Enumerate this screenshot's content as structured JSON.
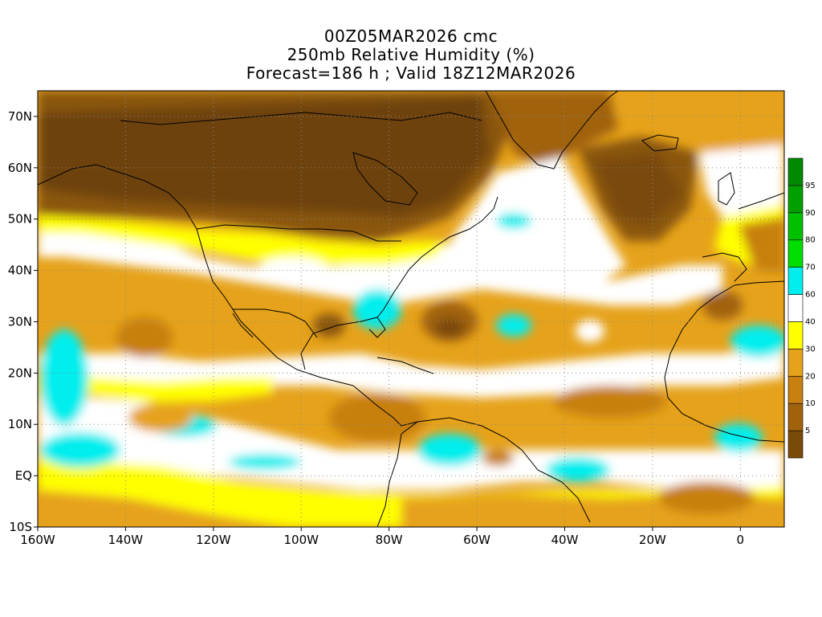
{
  "header": {
    "line1": "00Z05MAR2026 cmc",
    "line2": "250mb Relative Humidity (%)",
    "line3": "Forecast=186 h ; Valid 18Z12MAR2026"
  },
  "map": {
    "lon_range": [
      -160,
      10
    ],
    "lat_range": [
      -10,
      75
    ],
    "lat_ticks": [
      {
        "value": 70,
        "label": "70N"
      },
      {
        "value": 60,
        "label": "60N"
      },
      {
        "value": 50,
        "label": "50N"
      },
      {
        "value": 40,
        "label": "40N"
      },
      {
        "value": 30,
        "label": "30N"
      },
      {
        "value": 20,
        "label": "20N"
      },
      {
        "value": 10,
        "label": "10N"
      },
      {
        "value": 0,
        "label": "EQ"
      },
      {
        "value": -10,
        "label": "10S"
      }
    ],
    "lon_ticks": [
      {
        "value": -160,
        "label": "160W"
      },
      {
        "value": -140,
        "label": "140W"
      },
      {
        "value": -120,
        "label": "120W"
      },
      {
        "value": -100,
        "label": "100W"
      },
      {
        "value": -80,
        "label": "80W"
      },
      {
        "value": -60,
        "label": "60W"
      },
      {
        "value": -40,
        "label": "40W"
      },
      {
        "value": -20,
        "label": "20W"
      },
      {
        "value": 0,
        "label": "0"
      }
    ],
    "grid": "dotted"
  },
  "colorbar": {
    "levels": [
      {
        "label": "",
        "color": "#7a4a08"
      },
      {
        "label": "5",
        "color": "#a0620c"
      },
      {
        "label": "10",
        "color": "#c8800e"
      },
      {
        "label": "20",
        "color": "#e6a21a"
      },
      {
        "label": "30",
        "color": "#ffff00"
      },
      {
        "label": "40",
        "color": "#ffffff"
      },
      {
        "label": "60",
        "color": "#00eeee"
      },
      {
        "label": "70",
        "color": "#00dd00"
      },
      {
        "label": "80",
        "color": "#00c000"
      },
      {
        "label": "90",
        "color": "#00a000"
      },
      {
        "label": "95",
        "color": "#008a00"
      }
    ]
  }
}
